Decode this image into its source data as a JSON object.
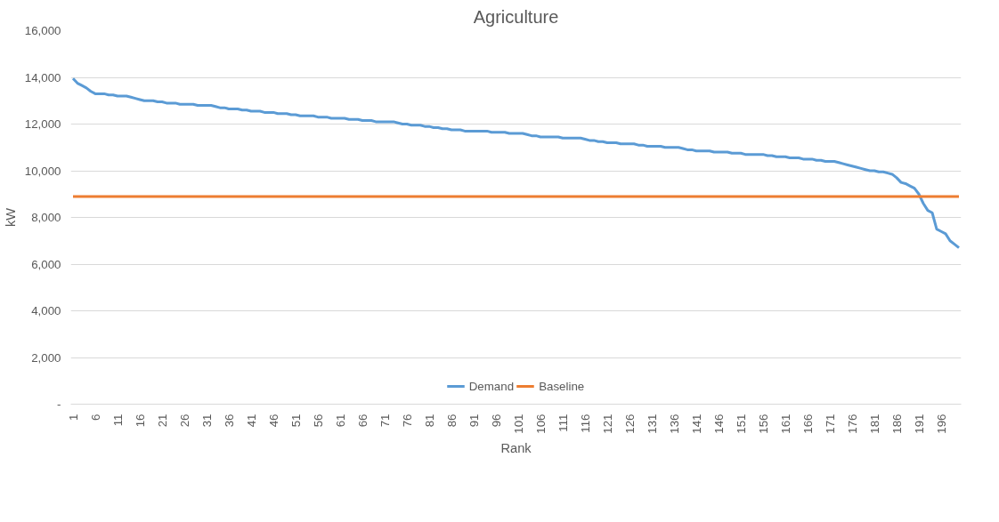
{
  "chart_data": {
    "type": "line",
    "title": "Agriculture",
    "xlabel": "Rank",
    "ylabel": "kW",
    "categories": [
      "1",
      null,
      null,
      null,
      null,
      "6",
      null,
      null,
      null,
      null,
      "11",
      null,
      null,
      null,
      null,
      "16",
      null,
      null,
      null,
      null,
      "21",
      null,
      null,
      null,
      null,
      "26",
      null,
      null,
      null,
      null,
      "31",
      null,
      null,
      null,
      null,
      "36",
      null,
      null,
      null,
      null,
      "41",
      null,
      null,
      null,
      null,
      "46",
      null,
      null,
      null,
      null,
      "51",
      null,
      null,
      null,
      null,
      "56",
      null,
      null,
      null,
      null,
      "61",
      null,
      null,
      null,
      null,
      "66",
      null,
      null,
      null,
      null,
      "71",
      null,
      null,
      null,
      null,
      "76",
      null,
      null,
      null,
      null,
      "81",
      null,
      null,
      null,
      null,
      "86",
      null,
      null,
      null,
      null,
      "91",
      null,
      null,
      null,
      null,
      "96",
      null,
      null,
      null,
      null,
      "101",
      null,
      null,
      null,
      null,
      "106",
      null,
      null,
      null,
      null,
      "111",
      null,
      null,
      null,
      null,
      "116",
      null,
      null,
      null,
      null,
      "121",
      null,
      null,
      null,
      null,
      "126",
      null,
      null,
      null,
      null,
      "131",
      null,
      null,
      null,
      null,
      "136",
      null,
      null,
      null,
      null,
      "141",
      null,
      null,
      null,
      null,
      "146",
      null,
      null,
      null,
      null,
      "151",
      null,
      null,
      null,
      null,
      "156",
      null,
      null,
      null,
      null,
      "161",
      null,
      null,
      null,
      null,
      "166",
      null,
      null,
      null,
      null,
      "171",
      null,
      null,
      null,
      null,
      "176",
      null,
      null,
      null,
      null,
      "181",
      null,
      null,
      null,
      null,
      "186",
      null,
      null,
      null,
      null,
      "191",
      null,
      null,
      null,
      null,
      "196",
      null,
      null,
      null,
      null
    ],
    "series": [
      {
        "name": "Demand",
        "color": "#5b9bd5",
        "values": [
          13950,
          13750,
          13650,
          13550,
          13400,
          13300,
          13300,
          13300,
          13250,
          13250,
          13200,
          13200,
          13200,
          13150,
          13100,
          13050,
          13000,
          13000,
          13000,
          12950,
          12950,
          12900,
          12900,
          12900,
          12850,
          12850,
          12850,
          12850,
          12800,
          12800,
          12800,
          12800,
          12750,
          12700,
          12700,
          12650,
          12650,
          12650,
          12600,
          12600,
          12550,
          12550,
          12550,
          12500,
          12500,
          12500,
          12450,
          12450,
          12450,
          12400,
          12400,
          12350,
          12350,
          12350,
          12350,
          12300,
          12300,
          12300,
          12250,
          12250,
          12250,
          12250,
          12200,
          12200,
          12200,
          12150,
          12150,
          12150,
          12100,
          12100,
          12100,
          12100,
          12100,
          12050,
          12000,
          12000,
          11950,
          11950,
          11950,
          11900,
          11900,
          11850,
          11850,
          11800,
          11800,
          11750,
          11750,
          11750,
          11700,
          11700,
          11700,
          11700,
          11700,
          11700,
          11650,
          11650,
          11650,
          11650,
          11600,
          11600,
          11600,
          11600,
          11550,
          11500,
          11500,
          11450,
          11450,
          11450,
          11450,
          11450,
          11400,
          11400,
          11400,
          11400,
          11400,
          11350,
          11300,
          11300,
          11250,
          11250,
          11200,
          11200,
          11200,
          11150,
          11150,
          11150,
          11150,
          11100,
          11100,
          11050,
          11050,
          11050,
          11050,
          11000,
          11000,
          11000,
          11000,
          10950,
          10900,
          10900,
          10850,
          10850,
          10850,
          10850,
          10800,
          10800,
          10800,
          10800,
          10750,
          10750,
          10750,
          10700,
          10700,
          10700,
          10700,
          10700,
          10650,
          10650,
          10600,
          10600,
          10600,
          10550,
          10550,
          10550,
          10500,
          10500,
          10500,
          10450,
          10450,
          10400,
          10400,
          10400,
          10350,
          10300,
          10250,
          10200,
          10150,
          10100,
          10050,
          10000,
          10000,
          9950,
          9950,
          9900,
          9850,
          9700,
          9500,
          9450,
          9350,
          9250,
          9000,
          8600,
          8300,
          8200,
          7500,
          7400,
          7300,
          7000,
          6850,
          6700
        ]
      },
      {
        "name": "Baseline",
        "color": "#ed7d31",
        "values": [
          8900,
          8900,
          8900,
          8900,
          8900,
          8900,
          8900,
          8900,
          8900,
          8900,
          8900,
          8900,
          8900,
          8900,
          8900,
          8900,
          8900,
          8900,
          8900,
          8900,
          8900,
          8900,
          8900,
          8900,
          8900,
          8900,
          8900,
          8900,
          8900,
          8900,
          8900,
          8900,
          8900,
          8900,
          8900,
          8900,
          8900,
          8900,
          8900,
          8900,
          8900,
          8900,
          8900,
          8900,
          8900,
          8900,
          8900,
          8900,
          8900,
          8900,
          8900,
          8900,
          8900,
          8900,
          8900,
          8900,
          8900,
          8900,
          8900,
          8900,
          8900,
          8900,
          8900,
          8900,
          8900,
          8900,
          8900,
          8900,
          8900,
          8900,
          8900,
          8900,
          8900,
          8900,
          8900,
          8900,
          8900,
          8900,
          8900,
          8900,
          8900,
          8900,
          8900,
          8900,
          8900,
          8900,
          8900,
          8900,
          8900,
          8900,
          8900,
          8900,
          8900,
          8900,
          8900,
          8900,
          8900,
          8900,
          8900,
          8900,
          8900,
          8900,
          8900,
          8900,
          8900,
          8900,
          8900,
          8900,
          8900,
          8900,
          8900,
          8900,
          8900,
          8900,
          8900,
          8900,
          8900,
          8900,
          8900,
          8900,
          8900,
          8900,
          8900,
          8900,
          8900,
          8900,
          8900,
          8900,
          8900,
          8900,
          8900,
          8900,
          8900,
          8900,
          8900,
          8900,
          8900,
          8900,
          8900,
          8900,
          8900,
          8900,
          8900,
          8900,
          8900,
          8900,
          8900,
          8900,
          8900,
          8900,
          8900,
          8900,
          8900,
          8900,
          8900,
          8900,
          8900,
          8900,
          8900,
          8900,
          8900,
          8900,
          8900,
          8900,
          8900,
          8900,
          8900,
          8900,
          8900,
          8900,
          8900,
          8900,
          8900,
          8900,
          8900,
          8900,
          8900,
          8900,
          8900,
          8900,
          8900,
          8900,
          8900,
          8900,
          8900,
          8900,
          8900,
          8900,
          8900,
          8900,
          8900,
          8900,
          8900,
          8900,
          8900,
          8900,
          8900,
          8900,
          8900,
          8900
        ]
      }
    ],
    "ylim": [
      0,
      16000
    ],
    "yticks": [
      {
        "value": 0,
        "label": "-"
      },
      {
        "value": 2000,
        "label": "2,000"
      },
      {
        "value": 4000,
        "label": "4,000"
      },
      {
        "value": 6000,
        "label": "6,000"
      },
      {
        "value": 8000,
        "label": "8,000"
      },
      {
        "value": 10000,
        "label": "10,000"
      },
      {
        "value": 12000,
        "label": "12,000"
      },
      {
        "value": 14000,
        "label": "14,000"
      },
      {
        "value": 16000,
        "label": "16,000"
      }
    ],
    "grid": "y",
    "legend": "bottom",
    "marker": "none",
    "line_style": "solid"
  }
}
